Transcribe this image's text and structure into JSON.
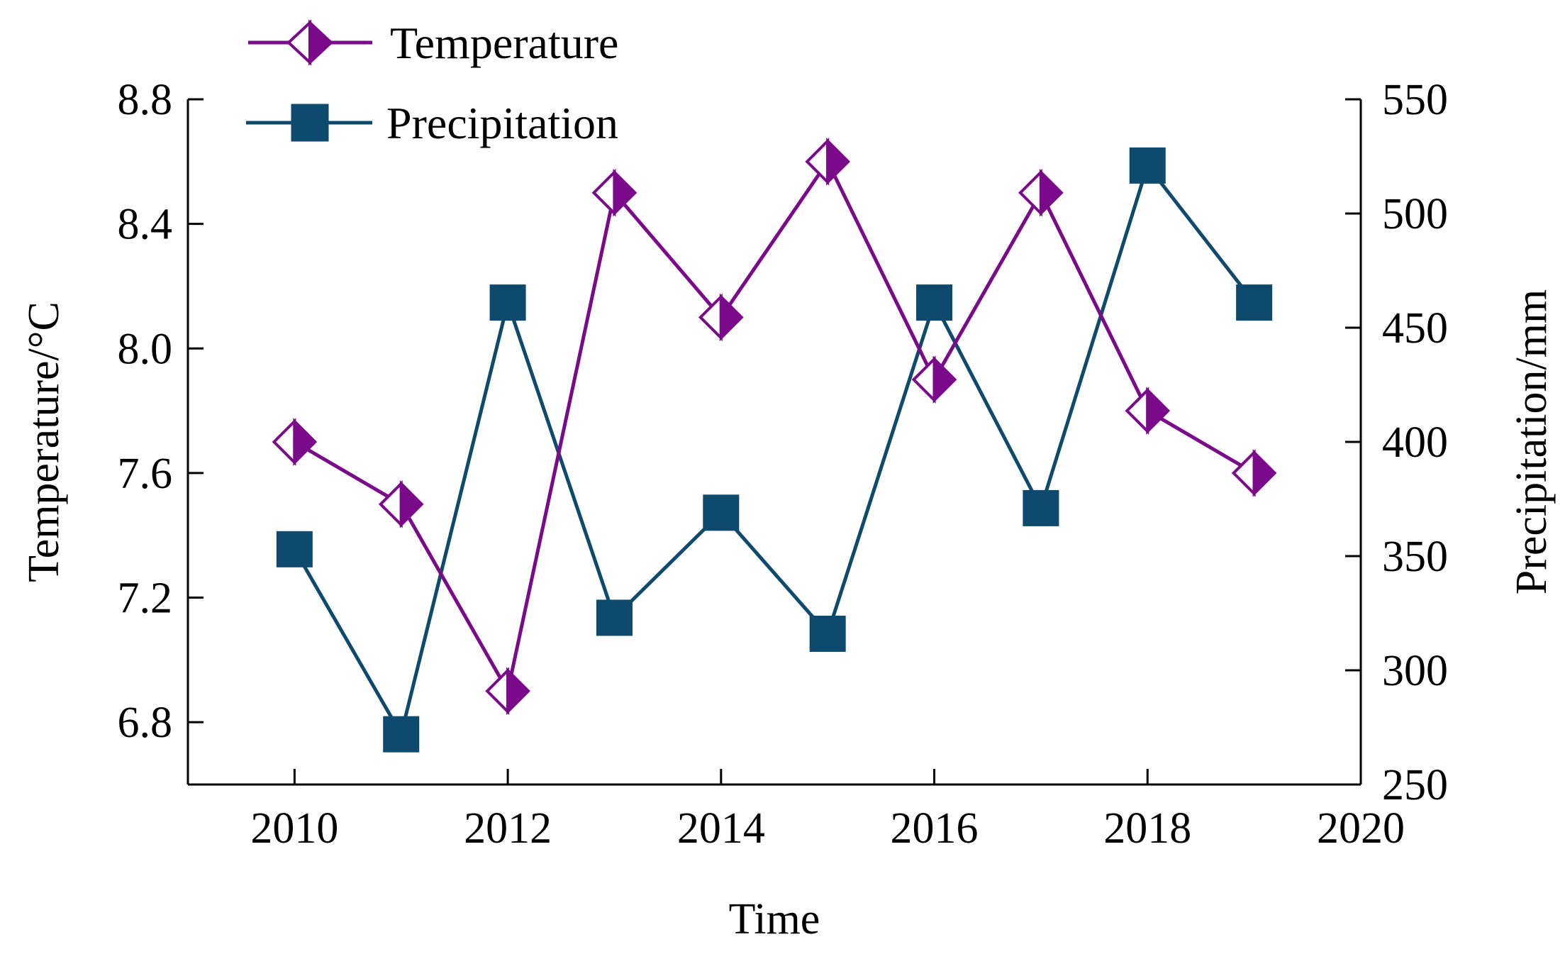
{
  "chart_data": {
    "type": "line",
    "title": "",
    "xlabel": "Time",
    "ylabel_left": "Temperature/°C",
    "ylabel_right": "Precipitation/mm",
    "xlim": [
      2009,
      2020
    ],
    "ylim_left": [
      6.6,
      8.8
    ],
    "ylim_right": [
      250,
      550
    ],
    "x_ticks": [
      2010,
      2012,
      2014,
      2016,
      2018,
      2020
    ],
    "y_ticks_left": [
      6.8,
      7.2,
      7.6,
      8.0,
      8.4,
      8.8
    ],
    "y_ticks_right": [
      250,
      300,
      350,
      400,
      450,
      500,
      550
    ],
    "x_tick_labels": [
      "2010",
      "2012",
      "2014",
      "2016",
      "2018",
      "2020"
    ],
    "y_tick_labels_left": [
      "6.8",
      "7.2",
      "7.6",
      "8.0",
      "8.4",
      "8.8"
    ],
    "y_tick_labels_right": [
      "250",
      "300",
      "350",
      "400",
      "450",
      "500",
      "550"
    ],
    "grid": false,
    "legend_position": "top-left",
    "x": [
      2010,
      2011,
      2012,
      2013,
      2014,
      2015,
      2016,
      2017,
      2018,
      2019
    ],
    "series": [
      {
        "name": "Temperature",
        "axis": "left",
        "color": "#7b0a8a",
        "marker": "half-filled-diamond",
        "values": [
          7.7,
          7.5,
          6.9,
          8.5,
          8.1,
          8.6,
          7.9,
          8.5,
          7.8,
          7.6
        ]
      },
      {
        "name": "Precipitation",
        "axis": "right",
        "color": "#0e4a6e",
        "marker": "filled-square",
        "values": [
          353,
          272,
          461,
          323,
          369,
          316,
          461,
          371,
          521,
          461
        ]
      }
    ]
  }
}
